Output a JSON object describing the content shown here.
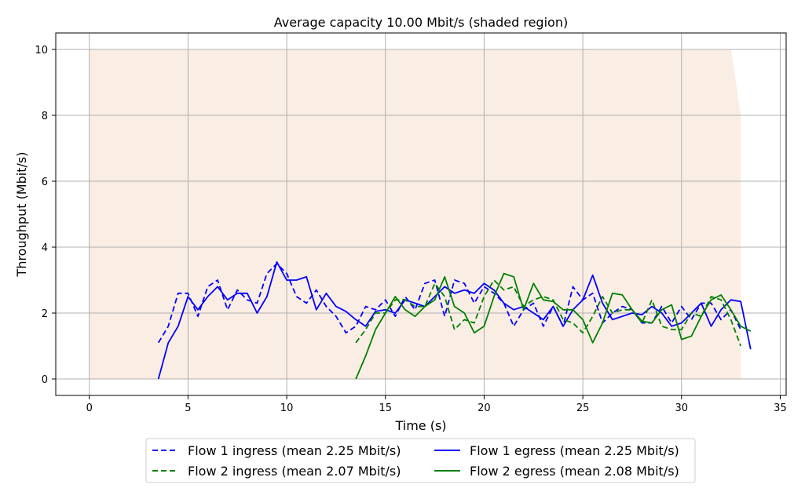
{
  "chart_data": {
    "type": "line",
    "title": "Average capacity 10.00 Mbit/s (shaded region)",
    "xlabel": "Time (s)",
    "ylabel": "Throughput (Mbit/s)",
    "xlim": [
      -1.7,
      35.3
    ],
    "ylim": [
      -0.5,
      10.5
    ],
    "xticks": [
      0,
      5,
      10,
      15,
      20,
      25,
      30,
      35
    ],
    "yticks": [
      0,
      2,
      4,
      6,
      8,
      10
    ],
    "grid": true,
    "legend_position": "bottom-center",
    "capacity": {
      "color": "#faede3",
      "x": [
        0,
        32.5,
        33.0,
        33.0,
        0
      ],
      "y": [
        10,
        10,
        8,
        0,
        0
      ]
    },
    "series": [
      {
        "name": "Flow 1 ingress (mean 2.25 Mbit/s)",
        "color": "#0000ff",
        "dash": true,
        "x": [
          3.5,
          4.0,
          4.5,
          5.0,
          5.5,
          6.0,
          6.5,
          7.0,
          7.5,
          8.0,
          8.5,
          9.0,
          9.5,
          10.0,
          10.5,
          11.0,
          11.5,
          12.0,
          12.5,
          13.0,
          13.5,
          14.0,
          14.5,
          15.0,
          15.5,
          16.0,
          16.5,
          17.0,
          17.5,
          18.0,
          18.5,
          19.0,
          19.5,
          20.0,
          20.5,
          21.0,
          21.5,
          22.0,
          22.5,
          23.0,
          23.5,
          24.0,
          24.5,
          25.0,
          25.5,
          26.0,
          26.5,
          27.0,
          27.5,
          28.0,
          28.5,
          29.0,
          29.5,
          30.0,
          30.5,
          31.0,
          31.5,
          32.0,
          32.5,
          33.0
        ],
        "y": [
          1.1,
          1.6,
          2.6,
          2.6,
          1.9,
          2.8,
          3.0,
          2.1,
          2.7,
          2.4,
          2.3,
          3.2,
          3.5,
          3.2,
          2.5,
          2.3,
          2.7,
          2.2,
          1.9,
          1.4,
          1.6,
          2.2,
          2.1,
          2.4,
          1.9,
          2.5,
          2.1,
          2.9,
          3.0,
          1.9,
          3.0,
          2.9,
          2.3,
          2.8,
          2.6,
          2.3,
          1.6,
          2.1,
          2.3,
          1.6,
          2.2,
          1.6,
          2.8,
          2.4,
          2.6,
          1.7,
          2.0,
          2.2,
          2.1,
          1.7,
          1.7,
          2.2,
          1.7,
          2.2,
          1.8,
          2.3,
          2.3,
          1.8,
          2.1,
          1.5
        ]
      },
      {
        "name": "Flow 1 egress (mean 2.25 Mbit/s)",
        "color": "#0000ff",
        "dash": false,
        "x": [
          3.5,
          4.0,
          4.5,
          5.0,
          5.5,
          6.0,
          6.5,
          7.0,
          7.5,
          8.0,
          8.5,
          9.0,
          9.5,
          10.0,
          10.5,
          11.0,
          11.5,
          12.0,
          12.5,
          13.0,
          13.5,
          14.0,
          14.5,
          15.0,
          15.5,
          16.0,
          16.5,
          17.0,
          17.5,
          18.0,
          18.5,
          19.0,
          19.5,
          20.0,
          20.5,
          21.0,
          21.5,
          22.0,
          22.5,
          23.0,
          23.5,
          24.0,
          24.5,
          25.0,
          25.5,
          26.0,
          26.5,
          27.0,
          27.5,
          28.0,
          28.5,
          29.0,
          29.5,
          30.0,
          30.5,
          31.0,
          31.5,
          32.0,
          32.5,
          33.0,
          33.5
        ],
        "y": [
          0.0,
          1.1,
          1.6,
          2.5,
          2.1,
          2.5,
          2.8,
          2.4,
          2.6,
          2.6,
          2.0,
          2.5,
          3.55,
          3.0,
          3.0,
          3.1,
          2.1,
          2.6,
          2.2,
          2.05,
          1.8,
          1.6,
          2.05,
          2.1,
          2.0,
          2.4,
          2.3,
          2.2,
          2.5,
          2.8,
          2.6,
          2.7,
          2.6,
          2.9,
          2.7,
          2.3,
          2.1,
          2.2,
          2.0,
          1.8,
          2.2,
          1.6,
          2.1,
          2.4,
          3.15,
          2.3,
          1.8,
          1.9,
          2.0,
          1.95,
          2.2,
          2.0,
          1.6,
          1.7,
          2.0,
          2.3,
          1.6,
          2.1,
          2.4,
          2.35,
          0.9
        ]
      },
      {
        "name": "Flow 2 ingress (mean 2.07 Mbit/s)",
        "color": "#008000",
        "dash": true,
        "x": [
          13.5,
          14.0,
          14.5,
          15.0,
          15.5,
          16.0,
          16.5,
          17.0,
          17.5,
          18.0,
          18.5,
          19.0,
          19.5,
          20.0,
          20.5,
          21.0,
          21.5,
          22.0,
          22.5,
          23.0,
          23.5,
          24.0,
          24.5,
          25.0,
          25.5,
          26.0,
          26.5,
          27.0,
          27.5,
          28.0,
          28.5,
          29.0,
          29.5,
          30.0,
          30.5,
          31.0,
          31.5,
          32.0,
          32.5,
          33.0
        ],
        "y": [
          1.1,
          1.5,
          2.0,
          2.0,
          2.4,
          2.4,
          2.2,
          2.2,
          2.9,
          2.5,
          1.5,
          1.8,
          1.7,
          2.5,
          3.0,
          2.7,
          2.8,
          2.2,
          2.4,
          2.5,
          2.4,
          1.8,
          1.7,
          1.4,
          1.9,
          2.5,
          2.0,
          2.1,
          2.1,
          1.7,
          2.4,
          1.6,
          1.5,
          1.5,
          2.0,
          1.9,
          2.5,
          2.4,
          1.8,
          1.0
        ]
      },
      {
        "name": "Flow 2 egress (mean 2.08 Mbit/s)",
        "color": "#008000",
        "dash": false,
        "x": [
          13.5,
          14.0,
          14.5,
          15.0,
          15.5,
          16.0,
          16.5,
          17.0,
          17.5,
          18.0,
          18.5,
          19.0,
          19.5,
          20.0,
          20.5,
          21.0,
          21.5,
          22.0,
          22.5,
          23.0,
          23.5,
          24.0,
          24.5,
          25.0,
          25.5,
          26.0,
          26.5,
          27.0,
          27.5,
          28.0,
          28.5,
          29.0,
          29.5,
          30.0,
          30.5,
          31.0,
          31.5,
          32.0,
          32.5,
          33.0,
          33.5
        ],
        "y": [
          0.0,
          0.7,
          1.5,
          2.0,
          2.5,
          2.1,
          1.9,
          2.2,
          2.4,
          3.1,
          2.2,
          2.0,
          1.4,
          1.6,
          2.5,
          3.2,
          3.1,
          2.1,
          2.9,
          2.4,
          2.35,
          2.1,
          2.1,
          1.8,
          1.1,
          1.7,
          2.6,
          2.55,
          2.1,
          1.75,
          1.7,
          2.1,
          2.25,
          1.2,
          1.3,
          1.9,
          2.4,
          2.55,
          2.1,
          1.6,
          1.45
        ]
      }
    ]
  }
}
